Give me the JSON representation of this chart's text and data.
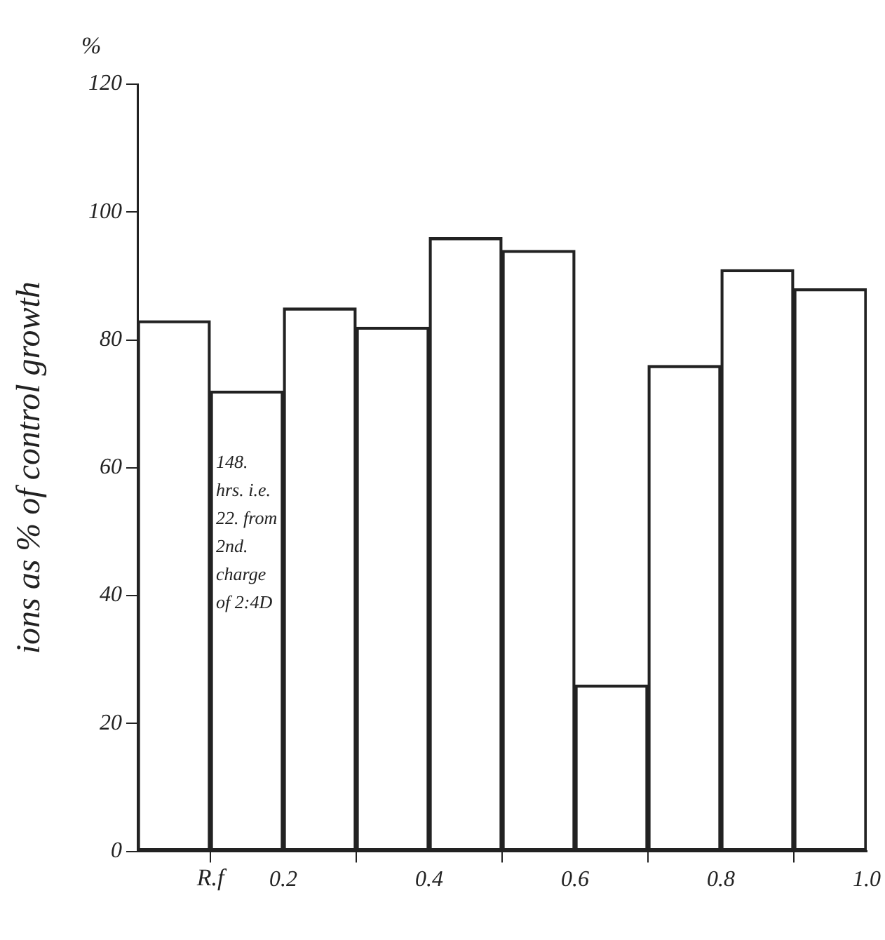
{
  "chart_data": {
    "type": "histogram",
    "xlabel": "R.f",
    "ylabel": "ions as % of control growth",
    "bins": [
      0,
      0.1,
      0.2,
      0.3,
      0.4,
      0.5,
      0.6,
      0.7,
      0.8,
      0.9,
      1.0
    ],
    "values": [
      83,
      72,
      85,
      82,
      96,
      94,
      26,
      76,
      91,
      88
    ],
    "color": "#222222",
    "xlim": [
      0,
      1.0
    ],
    "xticks": [
      0.2,
      0.4,
      0.6,
      0.8,
      {
        "value": 1,
        "label": "1.0"
      }
    ],
    "ylim": [
      0,
      120
    ],
    "yticks": [
      0,
      20,
      40,
      60,
      80,
      100,
      120
    ],
    "grid": false,
    "annotations": [
      "%",
      "148. hrs. i.e.\n22. from\n2nd. charge\nof 2:4D"
    ]
  }
}
